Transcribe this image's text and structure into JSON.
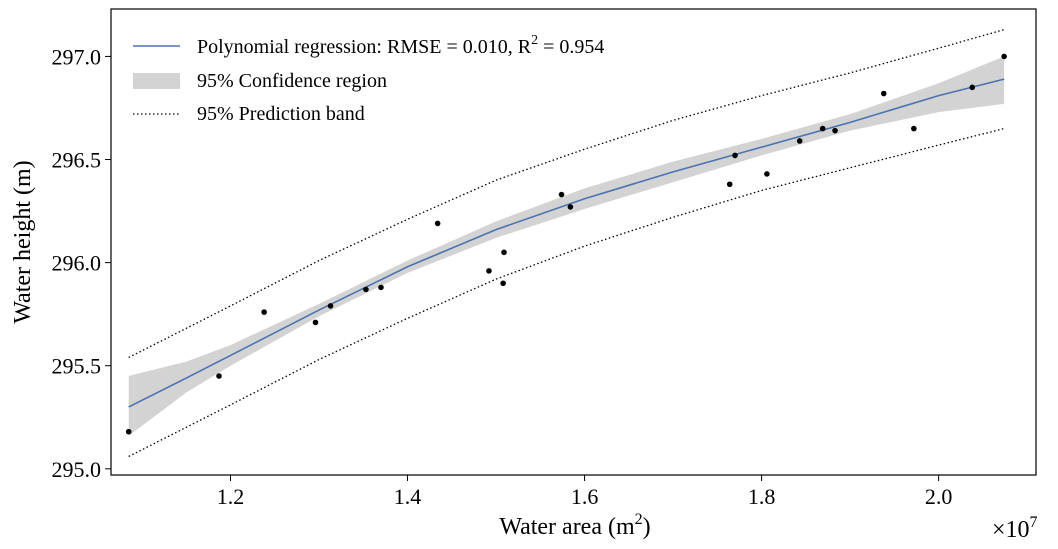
{
  "chart_data": {
    "type": "scatter",
    "xlabel": "Water area (m",
    "xlabel_sup": "2",
    "xlabel_close": ")",
    "ylabel": "Water height (m)",
    "x_multiplier": "×10",
    "x_multiplier_exp": "7",
    "xlim": [
      10650000,
      21100000
    ],
    "ylim": [
      294.97,
      297.23
    ],
    "x_ticks": [
      12000000,
      14000000,
      16000000,
      18000000,
      20000000
    ],
    "x_tick_labels": [
      "1.2",
      "1.4",
      "1.6",
      "1.8",
      "2.0"
    ],
    "y_ticks": [
      295.0,
      295.5,
      296.0,
      296.5,
      297.0
    ],
    "y_tick_labels": [
      "295.0",
      "295.5",
      "296.0",
      "296.5",
      "297.0"
    ],
    "grid": false,
    "legend_position": "top-left",
    "legend": {
      "regression_label": "Polynomial regression: RMSE = 0.010, R",
      "regression_sup": "2",
      "regression_tail": " = 0.954",
      "confidence_label": "95% Confidence region",
      "prediction_label": "95% Prediction band"
    },
    "colors": {
      "regression_line": "#4c72b0",
      "confidence_fill": "#d3d3d3",
      "points": "#000000",
      "prediction_band": "#000000"
    },
    "points": [
      {
        "x": 10850000,
        "y": 295.18
      },
      {
        "x": 11870000,
        "y": 295.45
      },
      {
        "x": 12380000,
        "y": 295.76
      },
      {
        "x": 12960000,
        "y": 295.71
      },
      {
        "x": 13130000,
        "y": 295.79
      },
      {
        "x": 13530000,
        "y": 295.87
      },
      {
        "x": 13700000,
        "y": 295.88
      },
      {
        "x": 14340000,
        "y": 296.19
      },
      {
        "x": 14920000,
        "y": 295.96
      },
      {
        "x": 15080000,
        "y": 295.9
      },
      {
        "x": 15090000,
        "y": 296.05
      },
      {
        "x": 15740000,
        "y": 296.33
      },
      {
        "x": 15840000,
        "y": 296.27
      },
      {
        "x": 17640000,
        "y": 296.38
      },
      {
        "x": 17700000,
        "y": 296.52
      },
      {
        "x": 18060000,
        "y": 296.43
      },
      {
        "x": 18430000,
        "y": 296.59
      },
      {
        "x": 18690000,
        "y": 296.65
      },
      {
        "x": 18830000,
        "y": 296.64
      },
      {
        "x": 19380000,
        "y": 296.82
      },
      {
        "x": 19720000,
        "y": 296.65
      },
      {
        "x": 20380000,
        "y": 296.85
      },
      {
        "x": 20740000,
        "y": 297.0
      }
    ],
    "regression": {
      "x": [
        10850000,
        11500000,
        12000000,
        13000000,
        14000000,
        15000000,
        16000000,
        17000000,
        18000000,
        19000000,
        20000000,
        20740000
      ],
      "y": [
        295.3,
        295.44,
        295.55,
        295.77,
        295.98,
        296.16,
        296.31,
        296.44,
        296.56,
        296.68,
        296.81,
        296.89
      ]
    },
    "confidence_region": {
      "x": [
        10850000,
        11500000,
        12000000,
        13000000,
        14000000,
        15000000,
        16000000,
        17000000,
        18000000,
        19000000,
        20000000,
        20740000
      ],
      "lower": [
        295.16,
        295.37,
        295.5,
        295.74,
        295.95,
        296.12,
        296.26,
        296.39,
        296.52,
        296.64,
        296.73,
        296.77
      ],
      "upper": [
        295.45,
        295.52,
        295.6,
        295.8,
        296.01,
        296.2,
        296.36,
        296.49,
        296.6,
        296.72,
        296.87,
        297.0
      ]
    },
    "prediction_band": {
      "x": [
        10850000,
        12000000,
        13000000,
        14000000,
        15000000,
        16000000,
        17000000,
        18000000,
        19000000,
        20000000,
        20740000
      ],
      "lower": [
        295.06,
        295.31,
        295.53,
        295.73,
        295.92,
        296.08,
        296.22,
        296.35,
        296.46,
        296.57,
        296.65
      ],
      "upper": [
        295.54,
        295.79,
        296.01,
        296.21,
        296.4,
        296.55,
        296.69,
        296.81,
        296.92,
        297.04,
        297.13
      ]
    }
  }
}
